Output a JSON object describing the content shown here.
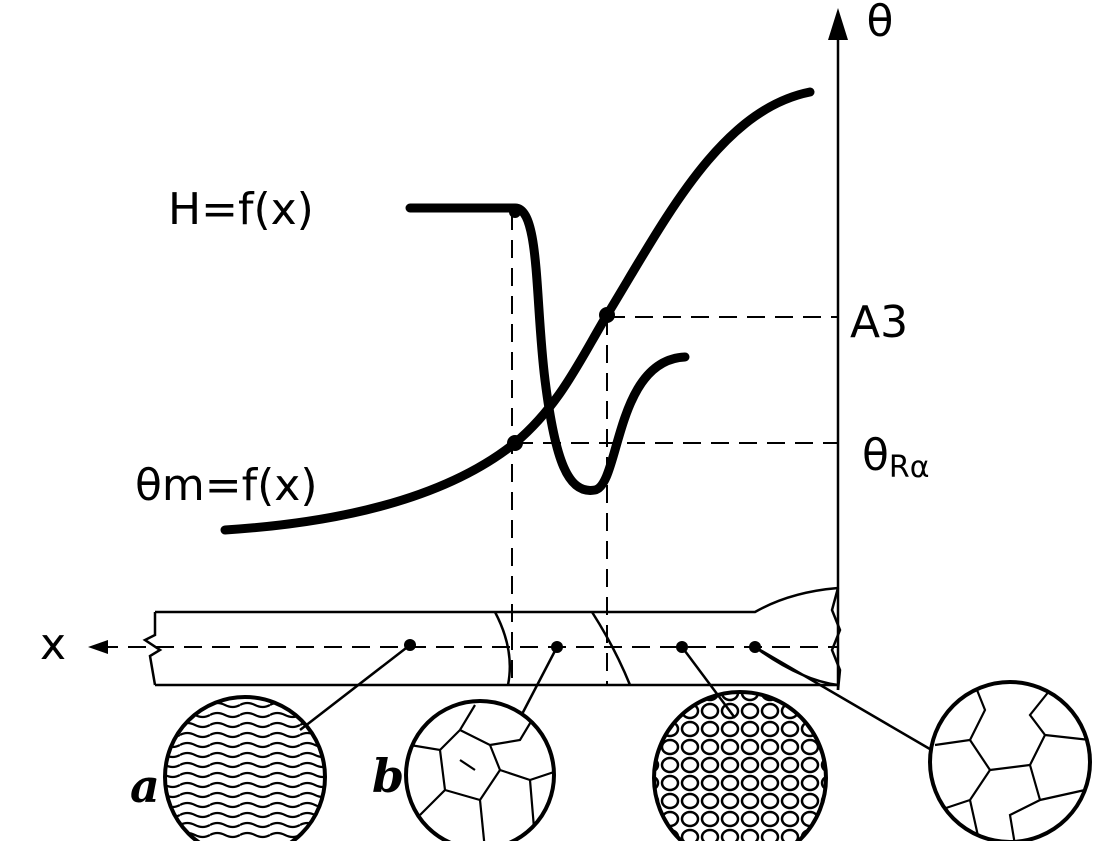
{
  "axis": {
    "label": "θ",
    "x_label": "x"
  },
  "curves": {
    "hardness": "H=f(x)",
    "temperature": "θm=f(x)"
  },
  "levels": {
    "a3": "A3",
    "theta_r": {
      "symbol": "θ",
      "subscript": "Rα"
    }
  },
  "zones": {
    "a": "a",
    "b": "b"
  }
}
